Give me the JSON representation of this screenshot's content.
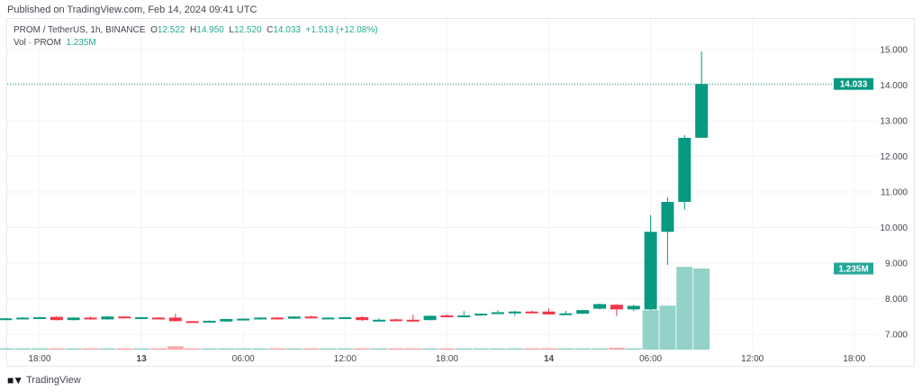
{
  "published": "Published on TradingView.com, Feb 14, 2024 09:41 UTC",
  "legend": {
    "symbol": "PROM / TetherUS, 1h, BINANCE",
    "o_label": "O",
    "o": "12.522",
    "h_label": "H",
    "h": "14.950",
    "l_label": "L",
    "l": "12.520",
    "c_label": "C",
    "c": "14.033",
    "change": "+1.513 (+12.08%)",
    "vol_label": "Vol · PROM",
    "vol": "1.235M"
  },
  "footer": {
    "brand": "TradingView",
    "logo": "TV"
  },
  "colors": {
    "up": "#089981",
    "down": "#f23645",
    "vol_up": "#92d2c8",
    "vol_down": "#f7a9a7",
    "grid": "#f0f3fa",
    "last_price_tag": "#089981",
    "vol_tag": "#26a69a"
  },
  "chart_data": {
    "type": "candlestick",
    "interval": "1h",
    "ylim": [
      6.6,
      15.3
    ],
    "y_ticks": [
      "7.000",
      "8.000",
      "9.000",
      "10.000",
      "11.000",
      "12.000",
      "13.000",
      "14.000",
      "15.000"
    ],
    "x_ticks": [
      "18:00",
      "13",
      "06:00",
      "12:00",
      "18:00",
      "14",
      "06:00",
      "12:00",
      "18:00"
    ],
    "last_price_label": "14.033",
    "last_volume_label": "1.235M",
    "grid": true,
    "first_bar": "Feb 12 16:00",
    "candles": [
      [
        7.44,
        7.45,
        7.43,
        7.45,
        0.01
      ],
      [
        7.43,
        7.48,
        7.42,
        7.47,
        0.01
      ],
      [
        7.47,
        7.49,
        7.46,
        7.48,
        0.01
      ],
      [
        7.49,
        7.51,
        7.39,
        7.4,
        0.01
      ],
      [
        7.4,
        7.48,
        7.39,
        7.47,
        0.01
      ],
      [
        7.47,
        7.5,
        7.41,
        7.42,
        0.02
      ],
      [
        7.42,
        7.51,
        7.41,
        7.5,
        0.01
      ],
      [
        7.5,
        7.51,
        7.44,
        7.45,
        0.01
      ],
      [
        7.46,
        7.49,
        7.45,
        7.48,
        0.01
      ],
      [
        7.47,
        7.48,
        7.42,
        7.46,
        0.01
      ],
      [
        7.47,
        7.58,
        7.36,
        7.37,
        0.05
      ],
      [
        7.37,
        7.38,
        7.35,
        7.36,
        0.01
      ],
      [
        7.36,
        7.39,
        7.34,
        7.38,
        0.01
      ],
      [
        7.36,
        7.44,
        7.35,
        7.43,
        0.01
      ],
      [
        7.43,
        7.45,
        7.42,
        7.44,
        0.01
      ],
      [
        7.43,
        7.48,
        7.42,
        7.47,
        0.01
      ],
      [
        7.47,
        7.49,
        7.42,
        7.44,
        0.02
      ],
      [
        7.44,
        7.51,
        7.43,
        7.5,
        0.02
      ],
      [
        7.5,
        7.52,
        7.45,
        7.46,
        0.02
      ],
      [
        7.46,
        7.48,
        7.43,
        7.47,
        0.01
      ],
      [
        7.46,
        7.49,
        7.45,
        7.48,
        0.01
      ],
      [
        7.48,
        7.51,
        7.38,
        7.4,
        0.02
      ],
      [
        7.4,
        7.45,
        7.36,
        7.41,
        0.02
      ],
      [
        7.42,
        7.44,
        7.39,
        7.4,
        0.02
      ],
      [
        7.41,
        7.55,
        7.4,
        7.4,
        0.02
      ],
      [
        7.4,
        7.53,
        7.39,
        7.52,
        0.01
      ],
      [
        7.53,
        7.56,
        7.48,
        7.5,
        0.02
      ],
      [
        7.5,
        7.65,
        7.49,
        7.53,
        0.02
      ],
      [
        7.54,
        7.59,
        7.52,
        7.58,
        0.01
      ],
      [
        7.58,
        7.68,
        7.57,
        7.62,
        0.01
      ],
      [
        7.6,
        7.66,
        7.52,
        7.64,
        0.01
      ],
      [
        7.64,
        7.66,
        7.61,
        7.62,
        0.01
      ],
      [
        7.64,
        7.73,
        7.55,
        7.56,
        0.02
      ],
      [
        7.57,
        7.66,
        7.56,
        7.59,
        0.01
      ],
      [
        7.58,
        7.69,
        7.57,
        7.68,
        0.01
      ],
      [
        7.72,
        7.86,
        7.7,
        7.85,
        0.01
      ],
      [
        7.83,
        7.85,
        7.52,
        7.7,
        0.03
      ],
      [
        7.7,
        7.83,
        7.65,
        7.8,
        0.01
      ],
      [
        7.7,
        10.35,
        7.68,
        9.88,
        0.6
      ],
      [
        9.88,
        10.85,
        8.95,
        10.72,
        0.67
      ],
      [
        10.72,
        12.6,
        10.5,
        12.52,
        1.26
      ],
      [
        12.522,
        14.95,
        12.52,
        14.033,
        1.235
      ]
    ]
  }
}
